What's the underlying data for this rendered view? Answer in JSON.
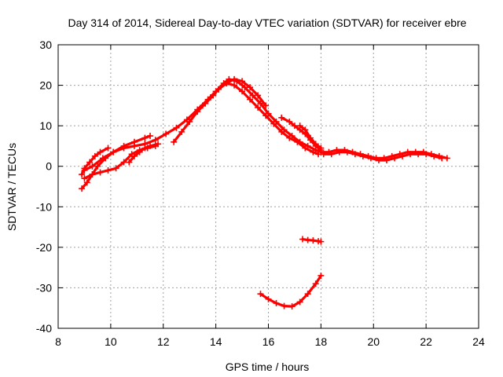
{
  "chart_data": {
    "type": "scatter",
    "title": "Day 314 of 2014, Sidereal Day-to-day VTEC variation (SDTVAR) for receiver ebre",
    "xlabel": "GPS time / hours",
    "ylabel": "SDTVAR / TECUs",
    "xlim": [
      8,
      24
    ],
    "ylim": [
      -40,
      30
    ],
    "xticks": [
      8,
      10,
      12,
      14,
      16,
      18,
      20,
      22,
      24
    ],
    "yticks": [
      -40,
      -30,
      -20,
      -10,
      0,
      10,
      20,
      30
    ],
    "grid": true,
    "marker": "+",
    "color": "#ff0000",
    "series": [
      {
        "name": "track-a",
        "x": [
          8.9,
          9.1,
          9.3,
          9.5,
          9.8,
          10.1,
          10.5,
          10.9,
          11.3,
          11.7,
          12.1,
          12.5,
          12.9,
          13.3,
          13.7,
          14.0,
          14.3,
          14.5,
          14.8,
          15.1,
          15.4,
          15.7,
          16.0,
          16.3,
          16.6,
          16.9,
          17.2,
          17.5,
          17.8,
          18.0
        ],
        "y": [
          -5.5,
          -4,
          -2,
          0,
          2,
          3.5,
          4.5,
          5,
          5.5,
          6.5,
          8,
          9.5,
          11.5,
          14,
          16.5,
          18.5,
          20.5,
          21.5,
          21,
          19.5,
          17.5,
          15.5,
          13,
          11,
          9,
          7.5,
          6,
          5,
          4,
          3.5
        ]
      },
      {
        "name": "track-b",
        "x": [
          8.9,
          9.0,
          9.2,
          9.4,
          9.6,
          9.9
        ],
        "y": [
          -2,
          -0.5,
          1,
          2.5,
          3.5,
          4.5
        ]
      },
      {
        "name": "track-c",
        "x": [
          9.0,
          9.3,
          9.6,
          9.9,
          10.2,
          10.5,
          10.8,
          11.1,
          11.4,
          11.7
        ],
        "y": [
          -3,
          -2,
          -1.5,
          -1,
          -0.5,
          1,
          3,
          4,
          4.5,
          5
        ]
      },
      {
        "name": "track-d",
        "x": [
          9.0,
          9.3,
          9.7,
          10.1,
          10.5,
          10.9,
          11.3,
          11.5
        ],
        "y": [
          -1,
          0,
          2,
          3.5,
          5,
          6,
          7,
          7.5
        ]
      },
      {
        "name": "track-e",
        "x": [
          10.7,
          10.9,
          11.1,
          11.3,
          11.5,
          11.8
        ],
        "y": [
          1,
          2.5,
          3.5,
          4.5,
          5,
          5.5
        ]
      },
      {
        "name": "track-f",
        "x": [
          12.4,
          12.7,
          13.0,
          13.3,
          13.6,
          13.9,
          14.1,
          14.4,
          14.7,
          15.0,
          15.3,
          15.6,
          15.9,
          16.2,
          16.5,
          16.8,
          17.1,
          17.4,
          17.7,
          17.9
        ],
        "y": [
          6,
          8.5,
          11,
          13.5,
          15.5,
          17.5,
          19,
          20.5,
          20,
          18.5,
          16.5,
          14.5,
          12.5,
          10.5,
          8.5,
          7,
          6,
          4.5,
          3.5,
          3
        ]
      },
      {
        "name": "track-g",
        "x": [
          13.5,
          13.8,
          14.1,
          14.4,
          14.7,
          15.0,
          15.3,
          15.6,
          15.9
        ],
        "y": [
          15,
          17,
          19,
          20.5,
          21.5,
          21,
          19.5,
          17.5,
          15
        ]
      },
      {
        "name": "track-h",
        "x": [
          16.5,
          16.8,
          17.0,
          17.2,
          17.4,
          17.6,
          17.8,
          18.0
        ],
        "y": [
          12,
          11,
          10,
          9,
          8,
          6.5,
          5,
          4
        ]
      },
      {
        "name": "track-i",
        "x": [
          17.2,
          17.4,
          17.6,
          17.8,
          18.0
        ],
        "y": [
          10,
          9,
          7,
          5.5,
          4.5
        ]
      },
      {
        "name": "track-j",
        "x": [
          18.0,
          18.3,
          18.6,
          18.9,
          19.2,
          19.5,
          19.8,
          20.1,
          20.4,
          20.7,
          21.0,
          21.3,
          21.6,
          21.9,
          22.2,
          22.5,
          22.8
        ],
        "y": [
          3.5,
          3.5,
          4,
          4,
          3.5,
          3,
          2.5,
          2,
          2,
          2.5,
          3,
          3.5,
          3.5,
          3.5,
          3,
          2.5,
          2
        ]
      },
      {
        "name": "track-k",
        "x": [
          18.1,
          18.4,
          18.7,
          19.0,
          19.3,
          19.6,
          19.9,
          20.2,
          20.5,
          20.8,
          21.1,
          21.4,
          21.7,
          22.0,
          22.3,
          22.6
        ],
        "y": [
          3,
          3,
          3.5,
          3.5,
          3,
          2.5,
          2,
          1.5,
          1.5,
          2,
          2.5,
          3,
          3,
          3,
          2.5,
          2
        ]
      },
      {
        "name": "track-l",
        "x": [
          15.7,
          16.0,
          16.3,
          16.6,
          16.9,
          17.2,
          17.5,
          17.8,
          18.0
        ],
        "y": [
          -31.5,
          -32.8,
          -33.8,
          -34.5,
          -34.6,
          -33.5,
          -31.5,
          -29,
          -27
        ]
      },
      {
        "name": "track-m",
        "x": [
          17.3,
          17.5,
          17.7,
          17.9,
          18.0
        ],
        "y": [
          -18,
          -18.2,
          -18.3,
          -18.5,
          -18.6
        ]
      }
    ]
  }
}
